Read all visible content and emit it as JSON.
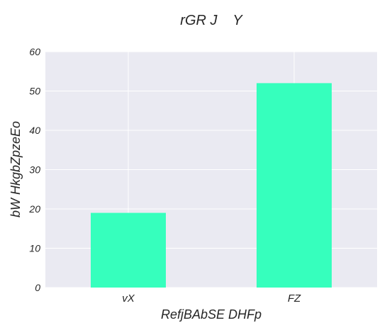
{
  "chart_data": {
    "type": "bar",
    "title": "rGR J    Y",
    "xlabel": "RefjBAbSE DHFp",
    "ylabel": "bW HkgbZpzeEo",
    "categories": [
      "vX",
      "FZ"
    ],
    "values": [
      19,
      52
    ],
    "ylim": [
      0,
      60
    ],
    "yticks": [
      0,
      10,
      20,
      30,
      40,
      50,
      60
    ],
    "grid": true,
    "colors": {
      "bar": "#36ffbd",
      "plot_background": "#eaeaf2",
      "grid": "#ffffff",
      "text": "#262626"
    }
  }
}
